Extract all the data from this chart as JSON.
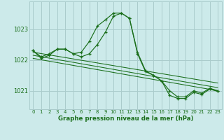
{
  "title": "Graphe pression niveau de la mer (hPa)",
  "bg_color": "#cceaea",
  "grid_color": "#aacccc",
  "line_color": "#1a6e1a",
  "xlim": [
    -0.5,
    23.5
  ],
  "ylim": [
    1020.4,
    1023.9
  ],
  "yticks": [
    1021,
    1022,
    1023
  ],
  "xticks": [
    0,
    1,
    2,
    3,
    4,
    5,
    6,
    7,
    8,
    9,
    10,
    11,
    12,
    13,
    14,
    15,
    16,
    17,
    18,
    19,
    20,
    21,
    22,
    23
  ],
  "series_main": [
    {
      "x": [
        0,
        1,
        2,
        3,
        4,
        5,
        6,
        7,
        8,
        9,
        10,
        11,
        12,
        13,
        14,
        15,
        16,
        17,
        18,
        19,
        20,
        21,
        22,
        23
      ],
      "y": [
        1022.3,
        1022.1,
        1022.2,
        1022.35,
        1022.35,
        1022.2,
        1022.25,
        1022.6,
        1023.1,
        1023.3,
        1023.52,
        1023.52,
        1023.35,
        1022.25,
        1021.65,
        1021.5,
        1021.32,
        1021.0,
        1020.8,
        1020.8,
        1021.0,
        1020.92,
        1021.08,
        1021.0
      ]
    },
    {
      "x": [
        0,
        1,
        2,
        3,
        4,
        5,
        6,
        7,
        8,
        9,
        10,
        11,
        12,
        13,
        14,
        15,
        16,
        17,
        18,
        19,
        20,
        21,
        22,
        23
      ],
      "y": [
        1022.3,
        1022.05,
        1022.15,
        1022.35,
        1022.35,
        1022.2,
        1022.1,
        1022.2,
        1022.5,
        1022.9,
        1023.42,
        1023.52,
        1023.35,
        1022.2,
        1021.62,
        1021.5,
        1021.32,
        1020.85,
        1020.75,
        1020.75,
        1020.95,
        1020.88,
        1021.05,
        1020.98
      ]
    }
  ],
  "series_trend": [
    {
      "x": [
        0,
        23
      ],
      "y": [
        1022.25,
        1021.25
      ]
    },
    {
      "x": [
        0,
        23
      ],
      "y": [
        1022.15,
        1021.1
      ]
    },
    {
      "x": [
        0,
        23
      ],
      "y": [
        1022.05,
        1021.0
      ]
    }
  ]
}
